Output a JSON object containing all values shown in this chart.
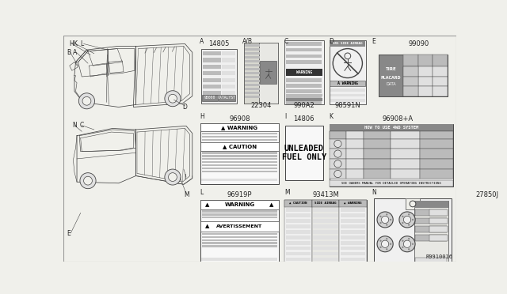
{
  "bg_color": "#f0f0eb",
  "line_color": "#444444",
  "text_color": "#222222",
  "grid_color": "#999999",
  "white": "#ffffff",
  "light_gray": "#e0e0e0",
  "mid_gray": "#bbbbbb",
  "dark_gray": "#888888",
  "very_dark": "#333333",
  "ref_code": "R9910016",
  "part_numbers": {
    "A": "14805",
    "AB": "22304",
    "C": "990A2",
    "D": "98591N",
    "E": "99090",
    "H": "96908",
    "I": "14806",
    "K": "96908+A",
    "L": "96919P",
    "M": "93413M",
    "N": "27850J"
  },
  "col_divs": [
    218,
    288,
    356,
    428,
    498,
    640
  ],
  "row_divs": [
    0,
    124,
    248,
    372
  ],
  "car_label_letters_top": [
    "H",
    "K",
    "L",
    "B",
    "A",
    "D"
  ],
  "car_label_letters_bot": [
    "N",
    "C",
    "I",
    "E",
    "M"
  ]
}
